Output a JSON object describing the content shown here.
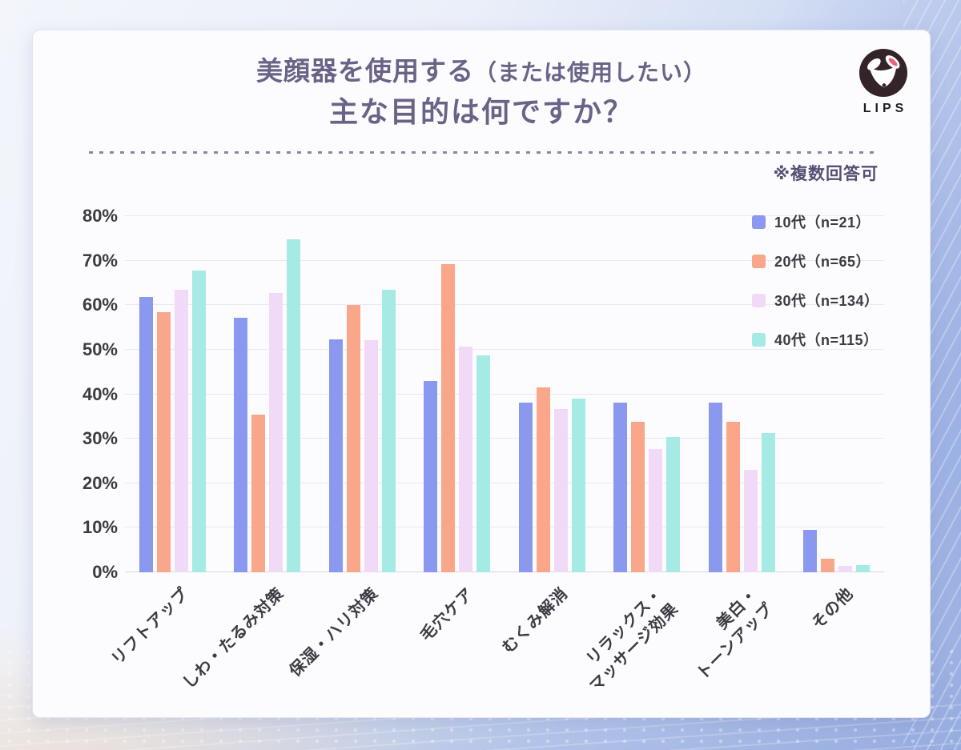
{
  "header": {
    "title_line1_main": "美顔器を使用する",
    "title_line1_paren": "（または使用したい）",
    "title_line2": "主な目的は何ですか？",
    "logo_text": "LIPS"
  },
  "note": "※複数回答可",
  "colors": {
    "title_text": "#6B6387",
    "note_text": "#574E73",
    "axis_text": "#3B3B42",
    "gridline": "#E9E9EF",
    "card_background": "#FCFCFE",
    "page_background_blue": "#A9BCE6",
    "logo_circle": "#33242A",
    "logo_accent_pink": "#F0607E"
  },
  "chart_data": {
    "type": "bar",
    "title": "美顔器を使用する（または使用したい）主な目的は何ですか？",
    "annotation": "※複数回答可",
    "categories": [
      "リフトアップ",
      "しわ・たるみ対策",
      "保湿・ハリ対策",
      "毛穴ケア",
      "むくみ解消",
      "リラックス・\nマッサージ効果",
      "美白・\nトーンアップ",
      "その他"
    ],
    "series": [
      {
        "name": "10代（n=21）",
        "color": "#8B98F0",
        "values": [
          61.9,
          57.1,
          52.4,
          42.9,
          38.1,
          38.1,
          38.1,
          9.5
        ]
      },
      {
        "name": "20代（n=65）",
        "color": "#F9A68A",
        "values": [
          58.5,
          35.4,
          60.0,
          69.2,
          41.5,
          33.8,
          33.8,
          3.1
        ]
      },
      {
        "name": "30代（n=134）",
        "color": "#F0DAF8",
        "values": [
          63.4,
          62.7,
          52.2,
          50.7,
          36.6,
          27.6,
          23.1,
          1.5
        ]
      },
      {
        "name": "40代（n=115）",
        "color": "#A6EAE6",
        "values": [
          67.8,
          74.8,
          63.5,
          48.7,
          39.1,
          30.4,
          31.3,
          1.7
        ]
      }
    ],
    "xlabel": "",
    "ylabel": "",
    "ylim": [
      0,
      80
    ],
    "yticks": [
      "0%",
      "10%",
      "20%",
      "30%",
      "40%",
      "50%",
      "60%",
      "70%",
      "80%"
    ],
    "grid": "horizontal",
    "legend_position": "top-right"
  }
}
